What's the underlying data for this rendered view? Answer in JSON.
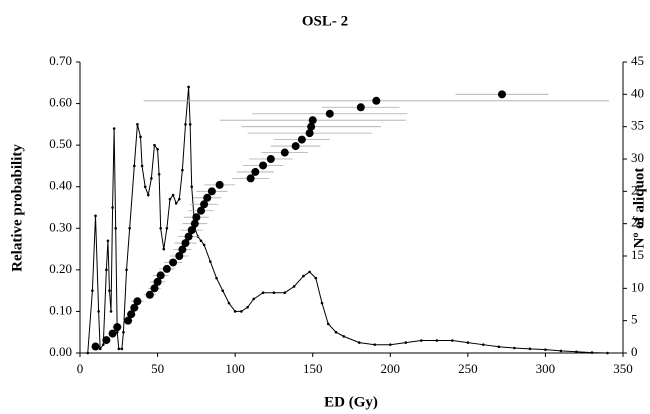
{
  "chart_data": {
    "type": "line",
    "title": "OSL- 2",
    "xlabel": "ED (Gy)",
    "ylabel": "Relative probability",
    "y2label": "Nº of aliquot",
    "xlim": [
      0,
      350
    ],
    "xticks": [
      0,
      50,
      100,
      150,
      200,
      250,
      300,
      350
    ],
    "ylim": [
      0,
      0.7
    ],
    "yticks": [
      {
        "value": 0,
        "label": "0.00"
      },
      {
        "value": 0.1,
        "label": "0.10"
      },
      {
        "value": 0.2,
        "label": "0.20"
      },
      {
        "value": 0.3,
        "label": "0.30"
      },
      {
        "value": 0.4,
        "label": "0.40"
      },
      {
        "value": 0.5,
        "label": "0.50"
      },
      {
        "value": 0.6,
        "label": "0.60"
      },
      {
        "value": 0.7,
        "label": "0.70"
      }
    ],
    "y2lim": [
      0,
      45
    ],
    "y2ticks": [
      0,
      5,
      10,
      15,
      20,
      25,
      30,
      35,
      40,
      45
    ],
    "series": [
      {
        "type": "line",
        "color": "#000000",
        "x": [
          5,
          8,
          10,
          12,
          13,
          15,
          17,
          18,
          19,
          20,
          21,
          22,
          23,
          24,
          25,
          27,
          28,
          30,
          32,
          35,
          37,
          39,
          40,
          42,
          44,
          46,
          48,
          50,
          51,
          52,
          54,
          56,
          58,
          60,
          62,
          64,
          66,
          68,
          70,
          71,
          72,
          74,
          76,
          78,
          80,
          84,
          88,
          92,
          96,
          100,
          104,
          108,
          112,
          118,
          125,
          132,
          138,
          144,
          148,
          152,
          156,
          160,
          165,
          170,
          180,
          190,
          200,
          210,
          220,
          230,
          240,
          250,
          260,
          270,
          280,
          290,
          300,
          310,
          320,
          330,
          340
        ],
        "values": [
          0,
          0.15,
          0.33,
          0.1,
          0.01,
          0.02,
          0.2,
          0.27,
          0.15,
          0.1,
          0.35,
          0.54,
          0.3,
          0.05,
          0.01,
          0.01,
          0.05,
          0.2,
          0.3,
          0.45,
          0.55,
          0.52,
          0.45,
          0.4,
          0.38,
          0.42,
          0.5,
          0.49,
          0.43,
          0.3,
          0.25,
          0.3,
          0.37,
          0.38,
          0.36,
          0.37,
          0.44,
          0.55,
          0.64,
          0.55,
          0.4,
          0.3,
          0.28,
          0.27,
          0.26,
          0.22,
          0.18,
          0.15,
          0.12,
          0.1,
          0.1,
          0.11,
          0.13,
          0.145,
          0.145,
          0.145,
          0.16,
          0.185,
          0.195,
          0.18,
          0.12,
          0.07,
          0.05,
          0.04,
          0.025,
          0.02,
          0.02,
          0.025,
          0.03,
          0.03,
          0.03,
          0.025,
          0.02,
          0.015,
          0.012,
          0.01,
          0.008,
          0.005,
          0.003,
          0.001,
          0
        ]
      },
      {
        "type": "scatter",
        "axis": "y2",
        "color": "#000000",
        "x": [
          10,
          17,
          21,
          24,
          31,
          33,
          35,
          37,
          45,
          48,
          50,
          52,
          56,
          60,
          64,
          66,
          68,
          70,
          72,
          74,
          75,
          78,
          80,
          82,
          85,
          90,
          110,
          113,
          118,
          123,
          132,
          139,
          143,
          148,
          149,
          150,
          161,
          181,
          191,
          272
        ],
        "values": [
          1,
          2,
          3,
          4,
          5,
          6,
          7,
          8,
          9,
          10,
          11,
          12,
          13,
          14,
          15,
          16,
          17,
          18,
          19,
          20,
          21,
          22,
          23,
          24,
          25,
          26,
          27,
          28,
          29,
          30,
          31,
          32,
          33,
          34,
          35,
          36,
          37,
          38,
          39,
          40
        ],
        "xerr": [
          2,
          2,
          2,
          3,
          3,
          3,
          3,
          4,
          4,
          4,
          5,
          5,
          5,
          6,
          6,
          6,
          7,
          7,
          7,
          8,
          8,
          8,
          9,
          9,
          10,
          10,
          12,
          12,
          13,
          14,
          15,
          16,
          18,
          40,
          45,
          60,
          50,
          25,
          150,
          30
        ]
      }
    ]
  }
}
